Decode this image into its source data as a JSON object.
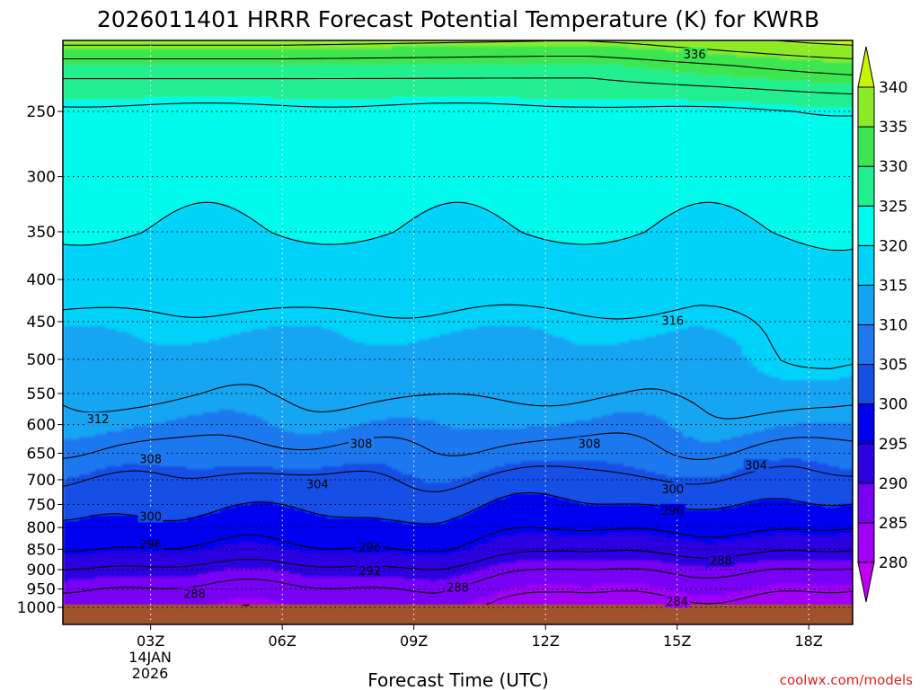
{
  "chart_data": {
    "type": "contour",
    "title": "2026011401 HRRR Forecast Potential Temperature (K) for KWRB",
    "xlabel": "Forecast Time (UTC)",
    "credit": "coolwx.com/models",
    "x_range": [
      1,
      19
    ],
    "x_ticks": [
      {
        "hour": 3,
        "label": "03Z"
      },
      {
        "hour": 6,
        "label": "06Z"
      },
      {
        "hour": 9,
        "label": "09Z"
      },
      {
        "hour": 12,
        "label": "12Z"
      },
      {
        "hour": 15,
        "label": "15Z"
      },
      {
        "hour": 18,
        "label": "18Z"
      }
    ],
    "date_label": [
      "14JAN",
      "2026"
    ],
    "y_axis": {
      "scale": "log",
      "reversed": true,
      "range_hpa": [
        1010,
        200
      ],
      "grid": "dotted"
    },
    "y_ticks": [
      250,
      300,
      350,
      400,
      450,
      500,
      550,
      600,
      650,
      700,
      750,
      800,
      850,
      900,
      950,
      1000
    ],
    "colorbar": {
      "levels": [
        280,
        285,
        290,
        295,
        300,
        305,
        310,
        315,
        320,
        325,
        330,
        335,
        340
      ],
      "colors": [
        "#c000f0",
        "#a000f5",
        "#7800f5",
        "#2c00e0",
        "#0000f0",
        "#1450e6",
        "#1e78ee",
        "#14a5f2",
        "#00d2fa",
        "#00faec",
        "#22f090",
        "#3ce650",
        "#8ceb28",
        "#c8f500"
      ]
    },
    "contour_labels": [
      {
        "value": "336",
        "hour": 15.4,
        "p": 213
      },
      {
        "value": "316",
        "hour": 14.9,
        "p": 448
      },
      {
        "value": "312",
        "hour": 1.8,
        "p": 590
      },
      {
        "value": "308",
        "hour": 3.0,
        "p": 660
      },
      {
        "value": "308",
        "hour": 7.8,
        "p": 632
      },
      {
        "value": "308",
        "hour": 13.0,
        "p": 632
      },
      {
        "value": "304",
        "hour": 6.8,
        "p": 708
      },
      {
        "value": "304",
        "hour": 16.8,
        "p": 672
      },
      {
        "value": "300",
        "hour": 3.0,
        "p": 775
      },
      {
        "value": "300",
        "hour": 14.9,
        "p": 718
      },
      {
        "value": "296",
        "hour": 3.0,
        "p": 838
      },
      {
        "value": "296",
        "hour": 8.0,
        "p": 845
      },
      {
        "value": "296",
        "hour": 14.9,
        "p": 762
      },
      {
        "value": "292",
        "hour": 8.0,
        "p": 902
      },
      {
        "value": "288",
        "hour": 4.0,
        "p": 962
      },
      {
        "value": "288",
        "hour": 10.0,
        "p": 945
      },
      {
        "value": "288",
        "hour": 16.0,
        "p": 877
      },
      {
        "value": "284",
        "hour": 15.0,
        "p": 983
      }
    ],
    "ground": {
      "color": "#a0522d",
      "from_hpa": 992
    }
  }
}
